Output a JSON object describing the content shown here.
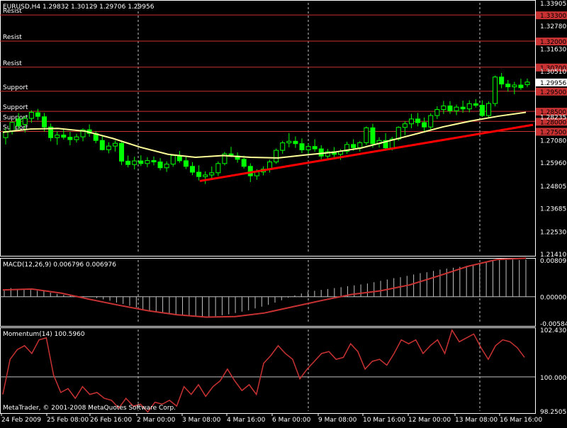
{
  "colors": {
    "background": "#000000",
    "frame": "#ffffff",
    "bull": "#00ff00",
    "bear": "#00ff00",
    "ma": "#ffff99",
    "trend": "#ff0000",
    "level": "#c83232",
    "level_tag_bg": "#c83232",
    "macd_hist": "#c0c0c0",
    "macd_signal": "#c83232",
    "momentum": "#c83232",
    "grid": "#c0c0c0"
  },
  "header": {
    "main": "EURUSD,H4  1.29832 1.30129 1.29706 1.29956",
    "macd": "MACD(12,26,9) 0.006796 0.006976",
    "momentum": "Momentum(14) 100.5960",
    "copyright": "MetaTrader, © 2001-2008 MetaQuotes Software Corp."
  },
  "chart_data": [
    {
      "type": "candlestick",
      "title": "EURUSD,H4",
      "ohlc_last": {
        "open": 1.29832,
        "high": 1.30129,
        "low": 1.29706,
        "close": 1.29956
      },
      "ylim": [
        1.2141,
        1.33905
      ],
      "y_ticks": [
        "1.33905",
        "1.32780",
        "1.31630",
        "1.30510",
        "1.29956",
        "1.28235",
        "1.27080",
        "1.25960",
        "1.24805",
        "1.23685",
        "1.22530",
        "1.21410"
      ],
      "y_tick_values": [
        1.33905,
        1.3278,
        1.3163,
        1.3051,
        1.29956,
        1.28235,
        1.2708,
        1.2596,
        1.24805,
        1.23685,
        1.2253,
        1.2141
      ],
      "current_price": "1.29956",
      "candles": [
        [
          1.2719,
          1.2766,
          1.2685,
          1.275
        ],
        [
          1.2751,
          1.28,
          1.2735,
          1.2795
        ],
        [
          1.2812,
          1.2842,
          1.276,
          1.2778
        ],
        [
          1.2785,
          1.2828,
          1.2745,
          1.2815
        ],
        [
          1.2815,
          1.2855,
          1.2793,
          1.2845
        ],
        [
          1.2843,
          1.2862,
          1.2807,
          1.2825
        ],
        [
          1.2823,
          1.2842,
          1.275,
          1.2772
        ],
        [
          1.2772,
          1.2789,
          1.2701,
          1.2719
        ],
        [
          1.2719,
          1.275,
          1.2683,
          1.2732
        ],
        [
          1.2732,
          1.2761,
          1.271,
          1.2721
        ],
        [
          1.2721,
          1.2748,
          1.2681,
          1.2709
        ],
        [
          1.2709,
          1.2738,
          1.2695,
          1.2723
        ],
        [
          1.2723,
          1.2765,
          1.2701,
          1.2758
        ],
        [
          1.2758,
          1.2785,
          1.2724,
          1.274
        ],
        [
          1.274,
          1.2751,
          1.2691,
          1.2705
        ],
        [
          1.2705,
          1.2732,
          1.2655,
          1.2659
        ],
        [
          1.2659,
          1.2696,
          1.2641,
          1.2677
        ],
        [
          1.2677,
          1.2704,
          1.265,
          1.2691
        ],
        [
          1.2691,
          1.2702,
          1.2583,
          1.2602
        ],
        [
          1.2602,
          1.263,
          1.2571,
          1.2585
        ],
        [
          1.2585,
          1.2624,
          1.2561,
          1.2603
        ],
        [
          1.2603,
          1.2631,
          1.2578,
          1.259
        ],
        [
          1.259,
          1.2622,
          1.2572,
          1.2605
        ],
        [
          1.2605,
          1.2625,
          1.2581,
          1.2598
        ],
        [
          1.2598,
          1.2617,
          1.2556,
          1.2569
        ],
        [
          1.2569,
          1.2601,
          1.2548,
          1.2587
        ],
        [
          1.2587,
          1.2637,
          1.2574,
          1.263
        ],
        [
          1.263,
          1.2653,
          1.2594,
          1.2604
        ],
        [
          1.2604,
          1.2626,
          1.2563,
          1.2576
        ],
        [
          1.2576,
          1.2597,
          1.2532,
          1.2547
        ],
        [
          1.2547,
          1.2581,
          1.2506,
          1.2525
        ],
        [
          1.2525,
          1.2551,
          1.2488,
          1.2533
        ],
        [
          1.2533,
          1.2575,
          1.2511,
          1.2544
        ],
        [
          1.2544,
          1.2601,
          1.2528,
          1.259
        ],
        [
          1.259,
          1.2648,
          1.2581,
          1.2638
        ],
        [
          1.2638,
          1.2673,
          1.2622,
          1.2628
        ],
        [
          1.2628,
          1.2645,
          1.2594,
          1.2611
        ],
        [
          1.2611,
          1.2629,
          1.2565,
          1.2576
        ],
        [
          1.2576,
          1.2591,
          1.2498,
          1.2529
        ],
        [
          1.2529,
          1.2562,
          1.2509,
          1.2548
        ],
        [
          1.2548,
          1.2576,
          1.2531,
          1.2562
        ],
        [
          1.2562,
          1.2609,
          1.2545,
          1.2598
        ],
        [
          1.2598,
          1.2665,
          1.2588,
          1.2656
        ],
        [
          1.2656,
          1.2703,
          1.2639,
          1.2693
        ],
        [
          1.2693,
          1.2742,
          1.2671,
          1.2701
        ],
        [
          1.2701,
          1.2725,
          1.2668,
          1.2689
        ],
        [
          1.2689,
          1.2715,
          1.2642,
          1.2658
        ],
        [
          1.2658,
          1.2689,
          1.2631,
          1.2675
        ],
        [
          1.2675,
          1.2711,
          1.2649,
          1.2663
        ],
        [
          1.2663,
          1.2681,
          1.2612,
          1.2627
        ],
        [
          1.2627,
          1.2663,
          1.2605,
          1.2649
        ],
        [
          1.2649,
          1.2672,
          1.2622,
          1.2636
        ],
        [
          1.2636,
          1.2662,
          1.2608,
          1.2651
        ],
        [
          1.2651,
          1.2699,
          1.2638,
          1.2685
        ],
        [
          1.2685,
          1.2711,
          1.2654,
          1.2669
        ],
        [
          1.2669,
          1.2702,
          1.265,
          1.2694
        ],
        [
          1.2694,
          1.2775,
          1.2682,
          1.2768
        ],
        [
          1.2768,
          1.2788,
          1.2669,
          1.2689
        ],
        [
          1.2689,
          1.2721,
          1.267,
          1.2705
        ],
        [
          1.2705,
          1.2741,
          1.2658,
          1.2668
        ],
        [
          1.2668,
          1.2723,
          1.2655,
          1.2712
        ],
        [
          1.2712,
          1.2775,
          1.2704,
          1.277
        ],
        [
          1.277,
          1.2801,
          1.2731,
          1.2788
        ],
        [
          1.2788,
          1.2838,
          1.2766,
          1.2812
        ],
        [
          1.2812,
          1.2842,
          1.2775,
          1.2794
        ],
        [
          1.2794,
          1.2819,
          1.2751,
          1.2772
        ],
        [
          1.2772,
          1.2841,
          1.2758,
          1.2829
        ],
        [
          1.2829,
          1.2875,
          1.2812,
          1.2859
        ],
        [
          1.2859,
          1.2902,
          1.2837,
          1.2877
        ],
        [
          1.2877,
          1.2901,
          1.2838,
          1.2853
        ],
        [
          1.2853,
          1.2884,
          1.2831,
          1.2871
        ],
        [
          1.2871,
          1.2903,
          1.2843,
          1.2862
        ],
        [
          1.2862,
          1.2905,
          1.2845,
          1.2888
        ],
        [
          1.2888,
          1.2911,
          1.2869,
          1.288
        ],
        [
          1.288,
          1.2905,
          1.2822,
          1.2829
        ],
        [
          1.2829,
          1.2899,
          1.2818,
          1.2889
        ],
        [
          1.2889,
          1.3028,
          1.2875,
          1.3021
        ],
        [
          1.3021,
          1.3041,
          1.2965,
          1.2986
        ],
        [
          1.2986,
          1.3006,
          1.2948,
          1.2972
        ],
        [
          1.2972,
          1.2997,
          1.2935,
          1.2981
        ],
        [
          1.2981,
          1.3012,
          1.2957,
          1.2968
        ],
        [
          1.2983,
          1.3013,
          1.2971,
          1.2996
        ]
      ],
      "moving_average": [
        [
          0,
          1.2746
        ],
        [
          8,
          1.2762
        ],
        [
          16,
          1.2765
        ],
        [
          24,
          1.2751
        ],
        [
          32,
          1.2715
        ],
        [
          40,
          1.2671
        ],
        [
          48,
          1.2636
        ],
        [
          56,
          1.2621
        ],
        [
          64,
          1.263
        ],
        [
          72,
          1.2621
        ],
        [
          80,
          1.2618
        ],
        [
          88,
          1.2633
        ],
        [
          96,
          1.2646
        ],
        [
          104,
          1.2667
        ],
        [
          112,
          1.2702
        ],
        [
          120,
          1.2737
        ],
        [
          128,
          1.2773
        ],
        [
          136,
          1.2802
        ],
        [
          144,
          1.2826
        ],
        [
          152,
          1.2845
        ]
      ],
      "trendline": {
        "from": [
          45,
          1.2503
        ],
        "to": [
          156,
          1.2783
        ]
      },
      "levels": [
        {
          "label": "Resist",
          "tag": "1.33300",
          "value": 1.333
        },
        {
          "label": "Resist",
          "tag": "1.32000",
          "value": 1.32
        },
        {
          "label": "Resist",
          "tag": "1.30700",
          "value": 1.307
        },
        {
          "label": "Support",
          "tag": "1.29500",
          "value": 1.295
        },
        {
          "label": "Support",
          "tag": "1.28500",
          "value": 1.285
        },
        {
          "label": "Support",
          "tag": "1.28000",
          "value": 1.28
        },
        {
          "label": "Support",
          "tag": "1.27500",
          "value": 1.275
        }
      ]
    },
    {
      "type": "bar",
      "title": "MACD(12,26,9)",
      "ylim": [
        -0.00584,
        0.00809
      ],
      "y_ticks": [
        "0.008091",
        "0.00000",
        "-0.00584"
      ],
      "y_tick_values": [
        0.00809,
        0,
        -0.00584
      ],
      "histogram": [
        0.0015,
        0.0019,
        0.0017,
        0.0016,
        0.0015,
        0.0013,
        0.0012,
        0.0009,
        0.0006,
        0.0004,
        0.0003,
        0.0002,
        0.0001,
        0.0,
        -0.0003,
        -0.0006,
        -0.0009,
        -0.0013,
        -0.0016,
        -0.002,
        -0.0024,
        -0.0028,
        -0.0031,
        -0.0034,
        -0.0036,
        -0.0039,
        -0.0041,
        -0.0042,
        -0.0043,
        -0.0044,
        -0.0045,
        -0.0044,
        -0.0043,
        -0.0041,
        -0.0039,
        -0.0036,
        -0.0033,
        -0.003,
        -0.0026,
        -0.0022,
        -0.0018,
        -0.0013,
        -0.0008,
        -0.0002,
        0.0003,
        0.0007,
        0.0011,
        0.0013,
        0.0015,
        0.0017,
        0.0019,
        0.0021,
        0.0023,
        0.0025,
        0.0027,
        0.0029,
        0.0032,
        0.0035,
        0.0038,
        0.0041,
        0.0043,
        0.0046,
        0.0049,
        0.0052,
        0.0054,
        0.0057,
        0.006,
        0.0062,
        0.0064,
        0.0066,
        0.0068,
        0.007,
        0.0073,
        0.0076,
        0.0079,
        0.0081,
        0.0081,
        0.0082,
        0.0081,
        0.0082
      ],
      "signal": [
        [
          0,
          0.0015
        ],
        [
          10,
          0.0017
        ],
        [
          20,
          0.0008
        ],
        [
          30,
          -0.0006
        ],
        [
          40,
          -0.0019
        ],
        [
          50,
          -0.0031
        ],
        [
          60,
          -0.004
        ],
        [
          70,
          -0.0045
        ],
        [
          80,
          -0.0044
        ],
        [
          90,
          -0.0036
        ],
        [
          100,
          -0.0022
        ],
        [
          110,
          -0.0008
        ],
        [
          120,
          0.0005
        ],
        [
          130,
          0.0013
        ],
        [
          140,
          0.0026
        ],
        [
          150,
          0.0046
        ],
        [
          160,
          0.0067
        ],
        [
          170,
          0.0082
        ],
        [
          180,
          0.0085
        ]
      ]
    },
    {
      "type": "line",
      "title": "Momentum(14)",
      "ylim": [
        98.2505,
        102.4301
      ],
      "y_ticks": [
        "102.4301",
        "100.0000",
        "98.2505"
      ],
      "y_tick_values": [
        102.4301,
        100.0,
        98.2505
      ],
      "values": [
        99.1,
        100.9,
        101.4,
        101.6,
        101.2,
        101.9,
        102.0,
        100.1,
        99.2,
        99.4,
        98.9,
        99.5,
        99.1,
        99.2,
        98.9,
        98.8,
        98.4,
        98.9,
        98.5,
        98.6,
        98.2,
        98.7,
        98.6,
        98.8,
        98.5,
        99.5,
        99.1,
        99.6,
        99.0,
        99.5,
        99.8,
        100.4,
        99.8,
        99.3,
        99.6,
        99.1,
        100.7,
        101.1,
        101.6,
        101.2,
        100.9,
        99.9,
        100.4,
        100.8,
        101.2,
        101.3,
        100.9,
        101.0,
        101.7,
        101.3,
        100.4,
        100.8,
        100.9,
        100.6,
        101.2,
        101.9,
        101.7,
        101.9,
        101.2,
        101.6,
        101.9,
        101.2,
        102.4,
        101.8,
        102.0,
        102.2,
        101.5,
        100.9,
        101.6,
        101.9,
        101.8,
        101.5,
        101.0
      ]
    }
  ],
  "x_axis": {
    "labels": [
      "24 Feb 2009",
      "25 Feb 08:00",
      "26 Feb 16:00",
      "2 Mar 00:00",
      "3 Mar 08:00",
      "4 Mar 16:00",
      "6 Mar 00:00",
      "9 Mar 08:00",
      "10 Mar 16:00",
      "12 Mar 00:00",
      "13 Mar 08:00",
      "16 Mar 16:00"
    ],
    "separators": [
      2,
      6,
      10
    ]
  }
}
